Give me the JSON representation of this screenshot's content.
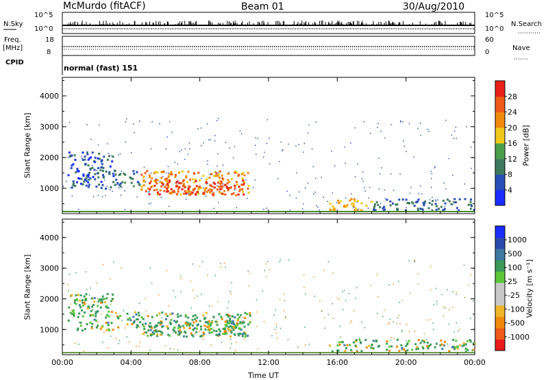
{
  "header": {
    "title": "McMurdo (fitACF)",
    "beam": "Beam 01",
    "date": "30/Aug/2010"
  },
  "strip_labels": {
    "nsky": "N.Sky",
    "nsearch": "N.Search",
    "freq": "Freq.",
    "freq_unit": "[MHz]",
    "nave": "Nave",
    "cpid": "CPID",
    "cpid_value": "normal (fast) 151",
    "nsky_ticks": [
      "10^5",
      "10^0"
    ],
    "nsearch_ticks": [
      "10^5",
      "10^0"
    ],
    "freq_ticks": [
      "18",
      "8"
    ],
    "nave_ticks": [
      "60",
      "0"
    ]
  },
  "colors": {
    "power_scale": [
      "#1a2cff",
      "#2b4fb8",
      "#3d7a5e",
      "#4aa04a",
      "#f0c81a",
      "#f08a0e",
      "#ee5a1a",
      "#e8201a"
    ],
    "velocity_scale": [
      "#e81a1a",
      "#ee5a1a",
      "#f08a0e",
      "#f0b428",
      "#c8c8c8",
      "#c8c8c8",
      "#5ac83a",
      "#3a9a5a",
      "#3f78a0",
      "#2a4aae",
      "#1a2cff"
    ]
  },
  "chart_data": [
    {
      "type": "heatmap",
      "name": "power",
      "ylabel": "Slant Range [km]",
      "yticks": [
        "4000",
        "3000",
        "2000",
        "1000"
      ],
      "ylim": [
        180,
        4600
      ],
      "colorbar_label": "Power [dB]",
      "colorbar_ticks": [
        "28",
        "24",
        "20",
        "16",
        "12",
        "8",
        "4"
      ],
      "colorbar_range": [
        0,
        32
      ],
      "regions_desc_hours_km": [
        {
          "from_hr": 0.3,
          "to_hr": 3.0,
          "low_km": 1000,
          "high_km": 2200,
          "level_db": 6
        },
        {
          "from_hr": 3.0,
          "to_hr": 4.5,
          "low_km": 1100,
          "high_km": 1600,
          "level_db": 10
        },
        {
          "from_hr": 4.5,
          "to_hr": 10.9,
          "low_km": 800,
          "high_km": 1600,
          "level_db": 22
        },
        {
          "from_hr": 5.0,
          "to_hr": 10.5,
          "low_km": 800,
          "high_km": 1300,
          "level_db": 28
        },
        {
          "from_hr": 15.5,
          "to_hr": 18.0,
          "low_km": 300,
          "high_km": 700,
          "level_db": 20
        },
        {
          "from_hr": 18.0,
          "to_hr": 24.0,
          "low_km": 300,
          "high_km": 700,
          "level_db": 8
        }
      ]
    },
    {
      "type": "heatmap",
      "name": "velocity",
      "xlabel": "Time UT",
      "ylabel": "Slant Range [km]",
      "yticks": [
        "4000",
        "3000",
        "2000",
        "1000"
      ],
      "ylim": [
        180,
        4600
      ],
      "xticks": [
        "00:00",
        "04:00",
        "08:00",
        "12:00",
        "16:00",
        "20:00",
        "00:00"
      ],
      "xlim": [
        0,
        24
      ],
      "colorbar_label": "Velocity [m s⁻¹]",
      "colorbar_ticks": [
        "1000",
        "500",
        "100",
        "25",
        "-25",
        "-100",
        "-500",
        "-1000"
      ],
      "colorbar_range": [
        -1200,
        1200
      ]
    }
  ]
}
